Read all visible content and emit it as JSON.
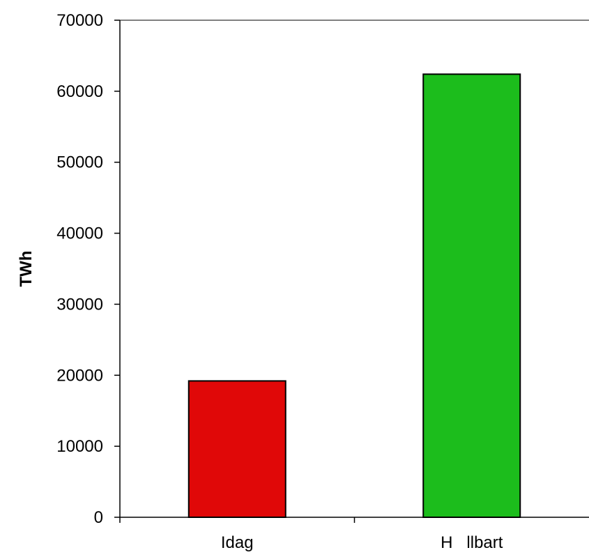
{
  "chart_data": {
    "type": "bar",
    "title": "",
    "xlabel": "",
    "ylabel": "TWh",
    "categories": [
      "Idag",
      "H   llbart"
    ],
    "values": [
      19200,
      62400
    ],
    "bar_colors": [
      "#e00808",
      "#1cbd1c"
    ],
    "ylim": [
      0,
      70000
    ],
    "yticks": [
      0,
      10000,
      20000,
      30000,
      40000,
      50000,
      60000,
      70000
    ],
    "grid": false,
    "legend": "none"
  }
}
